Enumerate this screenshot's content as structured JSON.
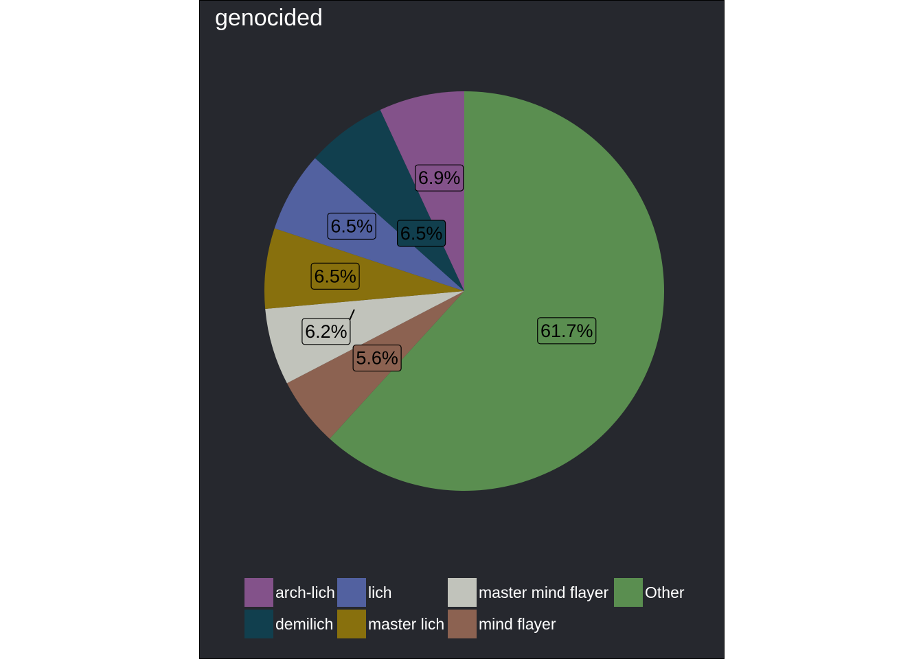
{
  "chart_data": {
    "type": "pie",
    "title": "genocided",
    "slices": [
      {
        "name": "Other",
        "value": 61.7,
        "label": "61.7%",
        "color": "#5a8e50"
      },
      {
        "name": "mind flayer",
        "value": 5.6,
        "label": "5.6%",
        "color": "#8c6251"
      },
      {
        "name": "master mind flayer",
        "value": 6.2,
        "label": "6.2%",
        "color": "#c1c3bb"
      },
      {
        "name": "master lich",
        "value": 6.5,
        "label": "6.5%",
        "color": "#88700d"
      },
      {
        "name": "lich",
        "value": 6.5,
        "label": "6.5%",
        "color": "#5261a0"
      },
      {
        "name": "demilich",
        "value": 6.5,
        "label": "6.5%",
        "color": "#113f4e"
      },
      {
        "name": "arch-lich",
        "value": 6.9,
        "label": "6.9%",
        "color": "#83528a"
      }
    ],
    "legend": {
      "placement": "bottom",
      "entries": [
        {
          "name": "arch-lich",
          "color": "#83528a"
        },
        {
          "name": "demilich",
          "color": "#113f4e"
        },
        {
          "name": "lich",
          "color": "#5261a0"
        },
        {
          "name": "master lich",
          "color": "#88700d"
        },
        {
          "name": "master mind flayer",
          "color": "#c1c3bb"
        },
        {
          "name": "mind flayer",
          "color": "#8c6251"
        },
        {
          "name": "Other",
          "color": "#5a8e50"
        }
      ]
    }
  }
}
